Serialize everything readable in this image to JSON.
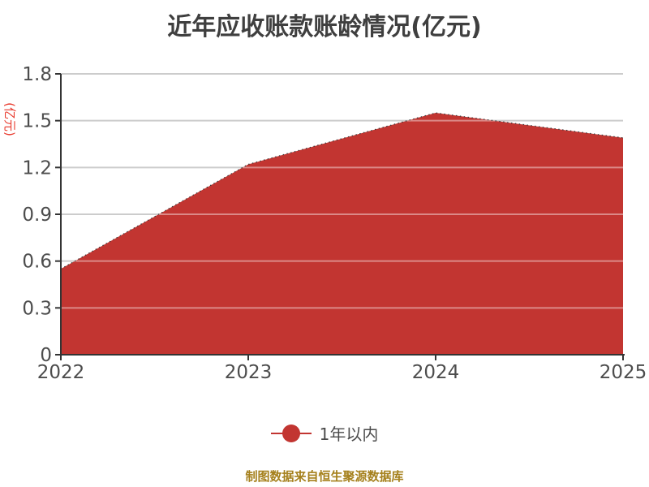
{
  "chart_data": {
    "type": "area",
    "title": "近年应收账款账龄情况(亿元)",
    "categories": [
      "2022",
      "2023",
      "2024",
      "2025"
    ],
    "series": [
      {
        "name": "1年以内",
        "values": [
          0.55,
          1.22,
          1.55,
          1.39
        ],
        "color": "#c23531"
      }
    ],
    "xlabel": "",
    "ylabel": "(亿元)",
    "y_ticks": [
      0,
      0.3,
      0.6,
      0.9,
      1.2,
      1.5,
      1.8
    ],
    "ylim": [
      0,
      1.8
    ],
    "grid": true,
    "legend_position": "bottom"
  },
  "footer": {
    "text": "制图数据来自恒生聚源数据库"
  },
  "colors": {
    "area_fill": "#c23531",
    "series_edge": "#3c3c3c",
    "title_text": "#3f3f3f",
    "axis_name_red": "#e8392c",
    "axis_label": "#4d4d4d",
    "axis_line": "#333333",
    "gridline": "#cccccc",
    "gridline_over_area": "rgba(255,255,255,0.42)",
    "footer_text": "#a5801c"
  }
}
